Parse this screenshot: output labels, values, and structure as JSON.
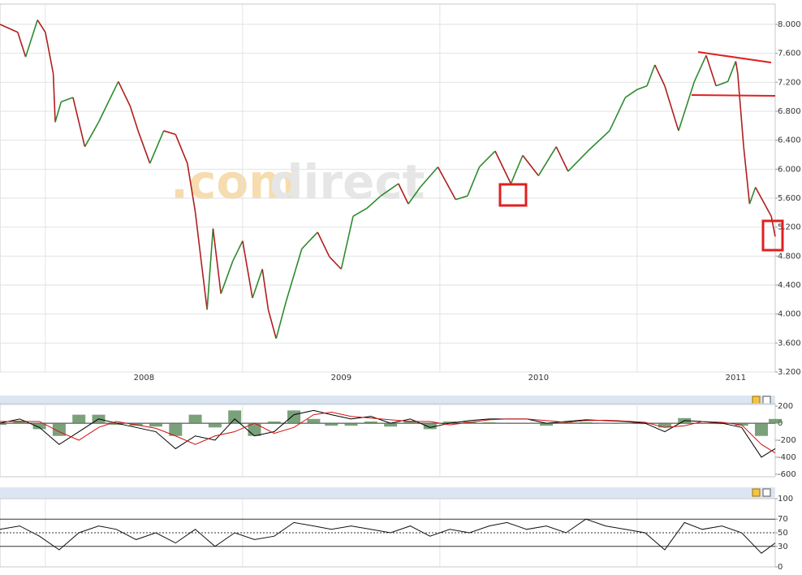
{
  "chart_data": [
    {
      "type": "line",
      "watermark": [
        ".com",
        "direct"
      ],
      "x": [
        2007.77,
        2007.86,
        2007.9,
        2007.96,
        2008.0,
        2008.04,
        2008.05,
        2008.08,
        2008.14,
        2008.2,
        2008.27,
        2008.37,
        2008.43,
        2008.47,
        2008.53,
        2008.6,
        2008.66,
        2008.72,
        2008.76,
        2008.79,
        2008.82,
        2008.85,
        2008.89,
        2008.95,
        2009.0,
        2009.05,
        2009.1,
        2009.13,
        2009.17,
        2009.22,
        2009.3,
        2009.38,
        2009.44,
        2009.5,
        2009.56,
        2009.63,
        2009.7,
        2009.79,
        2009.84,
        2009.9,
        2009.99,
        2010.08,
        2010.14,
        2010.2,
        2010.28,
        2010.36,
        2010.42,
        2010.5,
        2010.59,
        2010.65,
        2010.75,
        2010.86,
        2010.94,
        2011.0,
        2011.05,
        2011.09,
        2011.14,
        2011.21,
        2011.29,
        2011.35,
        2011.4,
        2011.46,
        2011.5,
        2011.51,
        2011.54,
        2011.57,
        2011.6,
        2011.68,
        2011.7
      ],
      "values": [
        8000,
        7890,
        7550,
        8060,
        7890,
        7320,
        6650,
        6930,
        6990,
        6310,
        6650,
        7210,
        6870,
        6530,
        6080,
        6530,
        6480,
        6080,
        5410,
        4730,
        4060,
        5180,
        4280,
        4730,
        5010,
        4220,
        4620,
        4060,
        3660,
        4170,
        4900,
        5130,
        4790,
        4620,
        5350,
        5460,
        5630,
        5800,
        5520,
        5750,
        6030,
        5580,
        5630,
        6030,
        6250,
        5800,
        6190,
        5910,
        6310,
        5970,
        6250,
        6530,
        6990,
        7100,
        7150,
        7440,
        7150,
        6530,
        7210,
        7570,
        7150,
        7210,
        7490,
        7320,
        6310,
        5520,
        5750,
        5350,
        5070
      ],
      "up_color": "#2e8b2e",
      "down_color": "#b01e1e",
      "xlim": [
        2007.77,
        2011.7
      ],
      "xticks": [
        2008,
        2009,
        2010,
        2011
      ],
      "ylim": [
        3200,
        8280
      ],
      "yticks": [
        {
          "value": 3200,
          "label": "3.200"
        },
        {
          "value": 3600,
          "label": "3.600"
        },
        {
          "value": 4000,
          "label": "4.000"
        },
        {
          "value": 4400,
          "label": "4.400"
        },
        {
          "value": 4800,
          "label": "4.800"
        },
        {
          "value": 5200,
          "label": "5.200"
        },
        {
          "value": 5600,
          "label": "5.600"
        },
        {
          "value": 6000,
          "label": "6.000"
        },
        {
          "value": 6400,
          "label": "6.400"
        },
        {
          "value": 6800,
          "label": "6.800"
        },
        {
          "value": 7200,
          "label": "7.200"
        },
        {
          "value": 7600,
          "label": "7.600"
        },
        {
          "value": 8000,
          "label": "8.000"
        }
      ],
      "grid": true
    },
    {
      "type": "macd",
      "x": [
        2007.77,
        2007.87,
        2007.97,
        2008.07,
        2008.17,
        2008.27,
        2008.36,
        2008.46,
        2008.56,
        2008.66,
        2008.76,
        2008.86,
        2008.96,
        2009.06,
        2009.16,
        2009.26,
        2009.36,
        2009.45,
        2009.55,
        2009.65,
        2009.75,
        2009.85,
        2009.95,
        2010.05,
        2010.15,
        2010.25,
        2010.34,
        2010.44,
        2010.54,
        2010.64,
        2010.74,
        2010.84,
        2010.94,
        2011.04,
        2011.14,
        2011.24,
        2011.33,
        2011.43,
        2011.53,
        2011.63,
        2011.7
      ],
      "series": [
        {
          "kind": "bar",
          "color": "#5a8a5a",
          "values": [
            -20,
            30,
            -70,
            -150,
            100,
            100,
            -20,
            -30,
            -40,
            -150,
            100,
            -50,
            150,
            -150,
            20,
            150,
            50,
            -30,
            -30,
            20,
            -40,
            30,
            -70,
            20,
            20,
            10,
            0,
            0,
            -30,
            10,
            10,
            -5,
            -5,
            -10,
            -50,
            60,
            0,
            -10,
            -30,
            -150,
            50
          ]
        },
        {
          "kind": "line",
          "color": "#000000",
          "values": [
            0,
            50,
            -50,
            -250,
            -100,
            50,
            0,
            -50,
            -100,
            -300,
            -150,
            -200,
            50,
            -150,
            -100,
            100,
            150,
            100,
            50,
            80,
            0,
            50,
            -50,
            0,
            30,
            50,
            50,
            50,
            0,
            20,
            40,
            30,
            20,
            0,
            -100,
            30,
            20,
            0,
            -50,
            -400,
            -300
          ]
        },
        {
          "kind": "line",
          "color": "#d01010",
          "values": [
            20,
            20,
            20,
            -100,
            -200,
            -50,
            20,
            -20,
            -60,
            -150,
            -250,
            -150,
            -100,
            0,
            -120,
            -50,
            100,
            130,
            80,
            60,
            40,
            20,
            20,
            -20,
            10,
            40,
            50,
            50,
            30,
            10,
            30,
            35,
            25,
            10,
            -50,
            -30,
            20,
            10,
            -20,
            -250,
            -350
          ]
        }
      ],
      "ylim": [
        -630,
        230
      ],
      "yticks": [
        -600,
        -400,
        -200,
        0,
        200
      ],
      "reference_lines": [
        0
      ],
      "grid": false
    },
    {
      "type": "line",
      "x": [
        2007.77,
        2007.87,
        2007.97,
        2008.07,
        2008.17,
        2008.27,
        2008.36,
        2008.46,
        2008.56,
        2008.66,
        2008.76,
        2008.86,
        2008.96,
        2009.06,
        2009.16,
        2009.26,
        2009.36,
        2009.45,
        2009.55,
        2009.65,
        2009.75,
        2009.85,
        2009.95,
        2010.05,
        2010.15,
        2010.25,
        2010.34,
        2010.44,
        2010.54,
        2010.64,
        2010.74,
        2010.84,
        2010.94,
        2011.04,
        2011.14,
        2011.24,
        2011.33,
        2011.43,
        2011.53,
        2011.63,
        2011.7
      ],
      "values": [
        55,
        60,
        45,
        25,
        50,
        60,
        55,
        40,
        50,
        35,
        55,
        30,
        50,
        40,
        45,
        65,
        60,
        55,
        60,
        55,
        50,
        60,
        45,
        55,
        50,
        60,
        65,
        55,
        60,
        50,
        70,
        60,
        55,
        50,
        25,
        65,
        55,
        60,
        50,
        20,
        35
      ],
      "color": "#111111",
      "ylim": [
        0,
        100
      ],
      "yticks": [
        0,
        30,
        50,
        70,
        100
      ],
      "reference_lines": [
        30,
        50,
        70
      ],
      "grid": false
    }
  ]
}
